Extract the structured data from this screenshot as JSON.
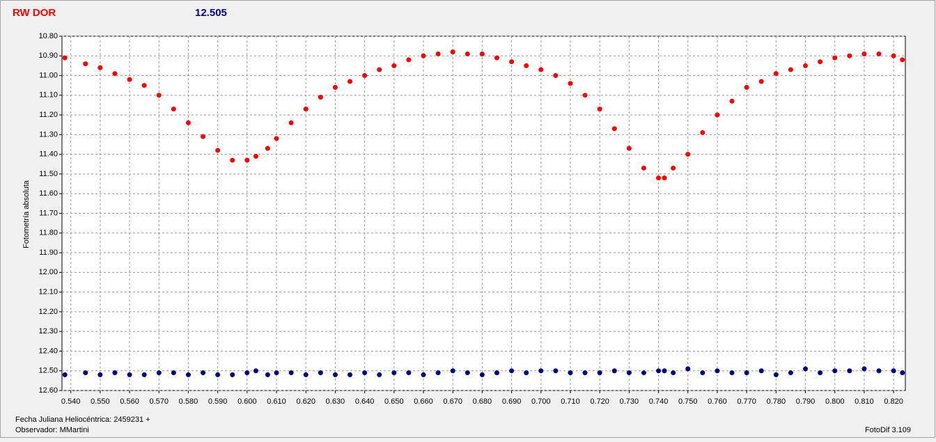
{
  "chart_data": {
    "type": "scatter",
    "title": "RW DOR",
    "subtitle": "12.505",
    "ylabel": "Fotometría absoluta",
    "annotations": [
      "Fecha Juliana Heliocéntrica: 2459231 +",
      "Observador: MMartini",
      "FotoDif 3.109"
    ],
    "y_inverted": true,
    "grid": true,
    "xlim": [
      0.537,
      0.824
    ],
    "ylim": [
      10.8,
      12.6
    ],
    "xticks": [
      {
        "value": 0.54,
        "label": "0.540"
      },
      {
        "value": 0.55,
        "label": "0.550"
      },
      {
        "value": 0.56,
        "label": "0.560"
      },
      {
        "value": 0.57,
        "label": "0.570"
      },
      {
        "value": 0.58,
        "label": "0.580"
      },
      {
        "value": 0.59,
        "label": "0.590"
      },
      {
        "value": 0.6,
        "label": "0.600"
      },
      {
        "value": 0.61,
        "label": "0.610"
      },
      {
        "value": 0.62,
        "label": "0.620"
      },
      {
        "value": 0.63,
        "label": "0.630"
      },
      {
        "value": 0.64,
        "label": "0.640"
      },
      {
        "value": 0.65,
        "label": "0.650"
      },
      {
        "value": 0.66,
        "label": "0.660"
      },
      {
        "value": 0.67,
        "label": "0.670"
      },
      {
        "value": 0.68,
        "label": "0.680"
      },
      {
        "value": 0.69,
        "label": "0.690"
      },
      {
        "value": 0.7,
        "label": "0.700"
      },
      {
        "value": 0.71,
        "label": "0.710"
      },
      {
        "value": 0.72,
        "label": "0.720"
      },
      {
        "value": 0.73,
        "label": "0.730"
      },
      {
        "value": 0.74,
        "label": "0.740"
      },
      {
        "value": 0.75,
        "label": "0.750"
      },
      {
        "value": 0.76,
        "label": "0.760"
      },
      {
        "value": 0.77,
        "label": "0.770"
      },
      {
        "value": 0.78,
        "label": "0.780"
      },
      {
        "value": 0.79,
        "label": "0.790"
      },
      {
        "value": 0.8,
        "label": "0.800"
      },
      {
        "value": 0.81,
        "label": "0.810"
      },
      {
        "value": 0.82,
        "label": "0.820"
      }
    ],
    "yticks": [
      {
        "value": 10.8,
        "label": "10.80"
      },
      {
        "value": 10.9,
        "label": "10.90"
      },
      {
        "value": 11.0,
        "label": "11.00"
      },
      {
        "value": 11.1,
        "label": "11.10"
      },
      {
        "value": 11.2,
        "label": "11.20"
      },
      {
        "value": 11.3,
        "label": "11.30"
      },
      {
        "value": 11.4,
        "label": "11.40"
      },
      {
        "value": 11.5,
        "label": "11.50"
      },
      {
        "value": 11.6,
        "label": "11.60"
      },
      {
        "value": 11.7,
        "label": "11.70"
      },
      {
        "value": 11.8,
        "label": "11.80"
      },
      {
        "value": 11.9,
        "label": "11.90"
      },
      {
        "value": 12.0,
        "label": "12.00"
      },
      {
        "value": 12.1,
        "label": "12.10"
      },
      {
        "value": 12.2,
        "label": "12.20"
      },
      {
        "value": 12.3,
        "label": "12.30"
      },
      {
        "value": 12.4,
        "label": "12.40"
      },
      {
        "value": 12.5,
        "label": "12.50"
      },
      {
        "value": 12.6,
        "label": "12.60"
      }
    ],
    "x": [
      0.538,
      0.545,
      0.55,
      0.555,
      0.56,
      0.565,
      0.57,
      0.575,
      0.58,
      0.585,
      0.59,
      0.595,
      0.6,
      0.603,
      0.607,
      0.61,
      0.615,
      0.62,
      0.625,
      0.63,
      0.635,
      0.64,
      0.645,
      0.65,
      0.655,
      0.66,
      0.665,
      0.67,
      0.675,
      0.68,
      0.685,
      0.69,
      0.695,
      0.7,
      0.705,
      0.71,
      0.715,
      0.72,
      0.725,
      0.73,
      0.735,
      0.74,
      0.742,
      0.745,
      0.75,
      0.755,
      0.76,
      0.765,
      0.77,
      0.775,
      0.78,
      0.785,
      0.79,
      0.795,
      0.8,
      0.805,
      0.81,
      0.815,
      0.82,
      0.823
    ],
    "series": [
      {
        "color": "#ff0000",
        "values": [
          10.91,
          10.94,
          10.96,
          10.99,
          11.02,
          11.05,
          11.1,
          11.17,
          11.24,
          11.31,
          11.38,
          11.43,
          11.43,
          11.41,
          11.37,
          11.32,
          11.24,
          11.17,
          11.11,
          11.06,
          11.03,
          11.0,
          10.97,
          10.95,
          10.92,
          10.9,
          10.89,
          10.88,
          10.89,
          10.89,
          10.91,
          10.93,
          10.95,
          10.97,
          11.0,
          11.04,
          11.1,
          11.17,
          11.27,
          11.37,
          11.47,
          11.52,
          11.52,
          11.47,
          11.4,
          11.29,
          11.2,
          11.13,
          11.06,
          11.03,
          10.99,
          10.97,
          10.95,
          10.93,
          10.91,
          10.9,
          10.89,
          10.89,
          10.9,
          10.92
        ]
      },
      {
        "color": "#000080",
        "values": [
          12.52,
          12.51,
          12.52,
          12.51,
          12.52,
          12.52,
          12.51,
          12.51,
          12.52,
          12.51,
          12.52,
          12.52,
          12.51,
          12.5,
          12.52,
          12.51,
          12.51,
          12.52,
          12.51,
          12.52,
          12.52,
          12.51,
          12.52,
          12.51,
          12.51,
          12.52,
          12.51,
          12.5,
          12.51,
          12.52,
          12.51,
          12.5,
          12.51,
          12.5,
          12.5,
          12.51,
          12.51,
          12.51,
          12.5,
          12.51,
          12.51,
          12.5,
          12.5,
          12.51,
          12.49,
          12.51,
          12.5,
          12.51,
          12.51,
          12.5,
          12.52,
          12.51,
          12.49,
          12.51,
          12.5,
          12.5,
          12.49,
          12.5,
          12.5,
          12.51
        ]
      }
    ]
  }
}
